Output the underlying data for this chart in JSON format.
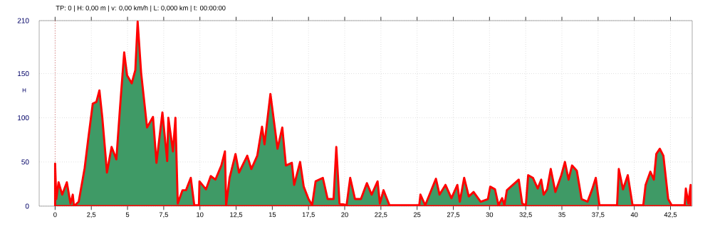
{
  "chart_data": {
    "type": "area",
    "ylabel": "H",
    "annotations": [
      "TP: 0 | H: 0,00 m | v: 0,00 km/h | L: 0,000 km | t: 00:00:00"
    ],
    "xlim": [
      -1.1,
      44
    ],
    "ylim": [
      0,
      210
    ],
    "xticks": [
      0,
      {
        "value": 2.5,
        "label": "2,5"
      },
      5,
      {
        "value": 7.5,
        "label": "7,5"
      },
      10,
      {
        "value": 12.5,
        "label": "12,5"
      },
      15,
      {
        "value": 17.5,
        "label": "17,5"
      },
      20,
      {
        "value": 22.5,
        "label": "22,5"
      },
      25,
      {
        "value": 27.5,
        "label": "27,5"
      },
      30,
      {
        "value": 32.5,
        "label": "32,5"
      },
      35,
      {
        "value": 37.5,
        "label": "37,5"
      },
      40,
      {
        "value": 42.5,
        "label": "42,5"
      }
    ],
    "yticks": [
      0,
      50,
      100,
      150,
      210
    ],
    "grid": true,
    "ref_lines": [
      {
        "axis": "x",
        "value": 0,
        "color": "#c00000",
        "line_style": "dotted"
      }
    ],
    "series": [
      {
        "color": "#3f9a66",
        "x": [
          0,
          0.08,
          0.24,
          0.49,
          0.81,
          1.06,
          1.22,
          1.3,
          1.63,
          2.04,
          2.28,
          2.6,
          2.85,
          3.06,
          3.26,
          3.5,
          3.58,
          3.9,
          4.23,
          4.48,
          4.77,
          4.97,
          5.29,
          5.54,
          5.7,
          5.94,
          6.35,
          6.76,
          7.0,
          7.41,
          7.74,
          7.82,
          8.14,
          8.31,
          8.47,
          8.8,
          9.04,
          9.37,
          9.61,
          9.93,
          9.97,
          10.42,
          10.75,
          11.07,
          11.48,
          11.73,
          11.81,
          12.05,
          12.46,
          12.7,
          13.27,
          13.55,
          13.96,
          14.29,
          14.46,
          14.87,
          15.36,
          15.69,
          15.94,
          16.35,
          16.51,
          16.92,
          17.17,
          17.5,
          17.75,
          17.99,
          18.49,
          18.82,
          19.23,
          19.42,
          19.64,
          20.13,
          20.38,
          20.71,
          21.12,
          21.53,
          21.86,
          22.27,
          22.43,
          22.68,
          23.09,
          25.15,
          25.23,
          25.56,
          26.3,
          26.55,
          26.96,
          27.37,
          27.78,
          27.95,
          28.25,
          28.57,
          28.9,
          29.39,
          29.89,
          30.05,
          30.38,
          30.62,
          30.87,
          31.03,
          31.2,
          31.61,
          32.02,
          32.26,
          32.51,
          32.67,
          33.0,
          33.33,
          33.57,
          33.74,
          33.98,
          34.23,
          34.55,
          34.96,
          35.21,
          35.46,
          35.7,
          36.03,
          36.36,
          36.77,
          37.09,
          37.34,
          37.59,
          38.81,
          38.93,
          39.22,
          39.55,
          39.88,
          40.62,
          40.78,
          41.11,
          41.35,
          41.52,
          41.76,
          42.01,
          42.34,
          42.58,
          43.48,
          43.56,
          43.73,
          43.89
        ],
        "values": [
          48,
          8,
          27,
          13,
          27,
          3,
          13,
          0,
          5,
          43,
          75,
          116,
          118,
          131,
          100,
          54,
          38,
          67,
          53,
          111,
          174,
          148,
          139,
          154,
          209,
          151,
          89,
          101,
          49,
          106,
          51,
          100,
          62,
          100,
          3,
          18,
          18,
          32,
          1,
          1,
          28,
          19,
          34,
          30,
          46,
          62,
          1,
          32,
          59,
          38,
          57,
          42,
          57,
          90,
          70,
          127,
          65,
          89,
          46,
          49,
          24,
          50,
          22,
          8,
          1,
          28,
          32,
          8,
          8,
          67,
          3,
          1,
          32,
          8,
          8,
          26,
          13,
          28,
          3,
          18,
          1,
          1,
          13,
          1,
          31,
          13,
          24,
          9,
          24,
          5,
          32,
          11,
          16,
          5,
          8,
          22,
          19,
          1,
          9,
          1,
          18,
          24,
          30,
          3,
          1,
          35,
          32,
          20,
          30,
          13,
          19,
          42,
          16,
          35,
          50,
          30,
          46,
          40,
          8,
          5,
          19,
          32,
          1,
          1,
          42,
          19,
          35,
          1,
          1,
          24,
          39,
          30,
          59,
          65,
          57,
          8,
          1,
          1,
          20,
          3,
          24
        ]
      }
    ]
  }
}
